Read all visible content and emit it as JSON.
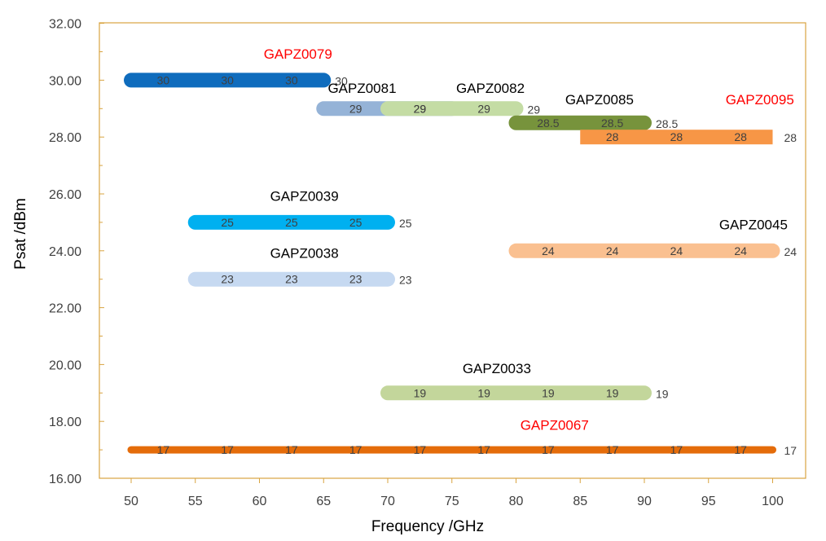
{
  "chart_data": {
    "type": "bar",
    "orientation": "horizontal-range",
    "xlabel": "Frequency /GHz",
    "ylabel": "Psat  /dBm",
    "xlim": [
      45,
      105
    ],
    "ylim": [
      16,
      32
    ],
    "x_ticks": [
      50,
      55,
      60,
      65,
      70,
      75,
      80,
      85,
      90,
      95,
      100
    ],
    "y_ticks": [
      "16.00",
      "18.00",
      "20.00",
      "22.00",
      "24.00",
      "26.00",
      "28.00",
      "30.00",
      "32.00"
    ],
    "grid": false,
    "legend": "none",
    "series": [
      {
        "name": "GAPZ0079",
        "name_color": "#ff0000",
        "color": "#0f6cbd",
        "cap": "round",
        "thick": 18,
        "x_start": 50,
        "x_end": 65,
        "y": 30,
        "value_labels": [
          "30",
          "30",
          "30"
        ],
        "end_label": "30",
        "name_x": 63,
        "name_y": 30.75
      },
      {
        "name": "GAPZ0081",
        "name_color": "#000000",
        "color": "#95b3d7",
        "cap": "round",
        "thick": 18,
        "x_start": 65,
        "x_end": 75,
        "y": 29,
        "value_labels": [
          "29",
          "29"
        ],
        "end_label": "",
        "name_x": 68,
        "name_y": 29.55
      },
      {
        "name": "GAPZ0082",
        "name_color": "#000000",
        "color": "#c4dca4",
        "cap": "round",
        "thick": 18,
        "x_start": 70,
        "x_end": 80,
        "y": 29,
        "value_labels": [
          "29",
          "29"
        ],
        "end_label": "29",
        "name_x": 78,
        "name_y": 29.55
      },
      {
        "name": "GAPZ0085",
        "name_color": "#000000",
        "color": "#77933c",
        "cap": "round",
        "thick": 18,
        "x_start": 80,
        "x_end": 90,
        "y": 28.5,
        "value_labels": [
          "28.5",
          "28.5"
        ],
        "end_label": "28.5",
        "name_x": 86.5,
        "name_y": 29.15
      },
      {
        "name": "GAPZ0095",
        "name_color": "#ff0000",
        "color": "#f79646",
        "cap": "square",
        "thick": 18,
        "x_start": 85,
        "x_end": 100,
        "y": 28,
        "value_labels": [
          "28",
          "28",
          "28"
        ],
        "end_label": "28",
        "name_x": 99,
        "name_y": 29.15
      },
      {
        "name": "GAPZ0039",
        "name_color": "#000000",
        "color": "#00b0f0",
        "cap": "round",
        "thick": 18,
        "x_start": 55,
        "x_end": 70,
        "y": 25,
        "value_labels": [
          "25",
          "25",
          "25"
        ],
        "end_label": "25",
        "name_x": 63.5,
        "name_y": 25.75
      },
      {
        "name": "GAPZ0045",
        "name_color": "#000000",
        "color": "#fac090",
        "cap": "round",
        "thick": 18,
        "x_start": 80,
        "x_end": 100,
        "y": 24,
        "value_labels": [
          "24",
          "24",
          "24",
          "24"
        ],
        "end_label": "24",
        "name_x": 98.5,
        "name_y": 24.75
      },
      {
        "name": "GAPZ0038",
        "name_color": "#000000",
        "color": "#c6d9f1",
        "cap": "round",
        "thick": 18,
        "x_start": 55,
        "x_end": 70,
        "y": 23,
        "value_labels": [
          "23",
          "23",
          "23"
        ],
        "end_label": "23",
        "name_x": 63.5,
        "name_y": 23.75
      },
      {
        "name": "GAPZ0033",
        "name_color": "#000000",
        "color": "#c3d69b",
        "cap": "round",
        "thick": 18,
        "x_start": 70,
        "x_end": 90,
        "y": 19,
        "value_labels": [
          "19",
          "19",
          "19",
          "19"
        ],
        "end_label": "19",
        "name_x": 78.5,
        "name_y": 19.7
      },
      {
        "name": "GAPZ0067",
        "name_color": "#ff0000",
        "color": "#e46c0a",
        "cap": "round",
        "thick": 9,
        "x_start": 50,
        "x_end": 100,
        "y": 17,
        "value_labels": [
          "17",
          "17",
          "17",
          "17",
          "17",
          "17",
          "17",
          "17",
          "17",
          "17"
        ],
        "end_label": "17",
        "name_x": 83,
        "name_y": 17.7
      }
    ]
  },
  "colors": {
    "plot_border": "#d9a441",
    "axis_tick": "#d9a441"
  }
}
